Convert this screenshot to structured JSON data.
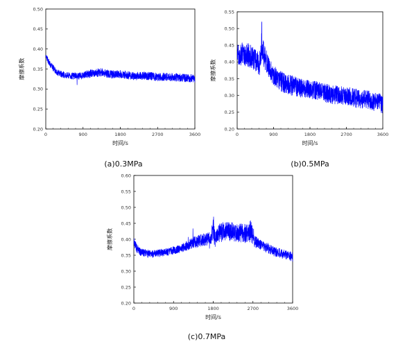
{
  "chart_data": [
    {
      "type": "line",
      "caption": "(a)0.3MPa",
      "xlabel": "时间/s",
      "ylabel": "摩擦系数",
      "xlim": [
        0,
        3600
      ],
      "ylim": [
        0.2,
        0.5
      ],
      "xticks": [
        "0",
        "900",
        "1800",
        "2700",
        "3600"
      ],
      "yticks": [
        "0.20",
        "0.25",
        "0.30",
        "0.35",
        "0.40",
        "0.45",
        "0.50"
      ],
      "color": "#0000ff",
      "series": [
        {
          "x": [
            0,
            60,
            150,
            300,
            450,
            600,
            750,
            900,
            1050,
            1200,
            1350,
            1500,
            1650,
            1800,
            1950,
            2100,
            2250,
            2400,
            2550,
            2700,
            2850,
            3000,
            3150,
            3300,
            3450,
            3600
          ],
          "y": [
            0.385,
            0.37,
            0.355,
            0.34,
            0.335,
            0.333,
            0.332,
            0.334,
            0.338,
            0.34,
            0.342,
            0.338,
            0.336,
            0.337,
            0.335,
            0.333,
            0.332,
            0.333,
            0.332,
            0.33,
            0.331,
            0.33,
            0.329,
            0.328,
            0.327,
            0.326
          ],
          "band": [
            0.005,
            0.008,
            0.008,
            0.008,
            0.008,
            0.008,
            0.009,
            0.009,
            0.01,
            0.01,
            0.01,
            0.01,
            0.01,
            0.01,
            0.01,
            0.01,
            0.01,
            0.01,
            0.01,
            0.01,
            0.01,
            0.01,
            0.01,
            0.01,
            0.01,
            0.01
          ]
        }
      ]
    },
    {
      "type": "line",
      "caption": "(b)0.5MPa",
      "xlabel": "时间/s",
      "ylabel": "摩擦系数",
      "xlim": [
        0,
        3600
      ],
      "ylim": [
        0.2,
        0.55
      ],
      "xticks": [
        "0",
        "900",
        "1800",
        "2700",
        "3600"
      ],
      "yticks": [
        "0.20",
        "0.25",
        "0.30",
        "0.35",
        "0.40",
        "0.45",
        "0.50",
        "0.55"
      ],
      "color": "#0000ff",
      "series": [
        {
          "x": [
            0,
            150,
            300,
            450,
            550,
            600,
            700,
            800,
            900,
            1050,
            1200,
            1350,
            1500,
            1650,
            1800,
            1950,
            2100,
            2250,
            2400,
            2550,
            2700,
            2850,
            3000,
            3150,
            3300,
            3450,
            3600
          ],
          "y": [
            0.42,
            0.425,
            0.42,
            0.405,
            0.39,
            0.44,
            0.41,
            0.38,
            0.36,
            0.345,
            0.335,
            0.33,
            0.325,
            0.32,
            0.318,
            0.315,
            0.31,
            0.305,
            0.302,
            0.3,
            0.298,
            0.295,
            0.29,
            0.288,
            0.285,
            0.28,
            0.275
          ],
          "band": [
            0.03,
            0.035,
            0.035,
            0.035,
            0.035,
            0.05,
            0.035,
            0.03,
            0.03,
            0.03,
            0.03,
            0.03,
            0.028,
            0.028,
            0.028,
            0.028,
            0.028,
            0.028,
            0.028,
            0.028,
            0.028,
            0.028,
            0.028,
            0.028,
            0.028,
            0.028,
            0.028
          ]
        }
      ]
    },
    {
      "type": "line",
      "caption": "(c)0.7MPa",
      "xlabel": "时间/s",
      "ylabel": "摩擦系数",
      "xlim": [
        0,
        3600
      ],
      "ylim": [
        0.2,
        0.6
      ],
      "xticks": [
        "0",
        "900",
        "1800",
        "2700",
        "3600"
      ],
      "yticks": [
        "0.20",
        "0.25",
        "0.30",
        "0.35",
        "0.40",
        "0.45",
        "0.50",
        "0.55",
        "0.60"
      ],
      "color": "#0000ff",
      "series": [
        {
          "x": [
            0,
            50,
            150,
            300,
            450,
            600,
            750,
            900,
            1050,
            1200,
            1350,
            1500,
            1650,
            1750,
            1800,
            1850,
            1950,
            2050,
            2200,
            2350,
            2500,
            2600,
            2650,
            2750,
            2900,
            3050,
            3200,
            3350,
            3500,
            3600
          ],
          "y": [
            0.39,
            0.375,
            0.36,
            0.355,
            0.355,
            0.357,
            0.36,
            0.365,
            0.37,
            0.38,
            0.39,
            0.395,
            0.4,
            0.405,
            0.43,
            0.405,
            0.42,
            0.425,
            0.425,
            0.42,
            0.42,
            0.415,
            0.43,
            0.39,
            0.38,
            0.37,
            0.36,
            0.355,
            0.35,
            0.345
          ],
          "band": [
            0.015,
            0.015,
            0.012,
            0.012,
            0.012,
            0.012,
            0.012,
            0.012,
            0.012,
            0.015,
            0.018,
            0.02,
            0.02,
            0.02,
            0.05,
            0.02,
            0.03,
            0.03,
            0.03,
            0.03,
            0.03,
            0.03,
            0.035,
            0.02,
            0.015,
            0.015,
            0.015,
            0.015,
            0.015,
            0.015
          ]
        }
      ]
    }
  ]
}
